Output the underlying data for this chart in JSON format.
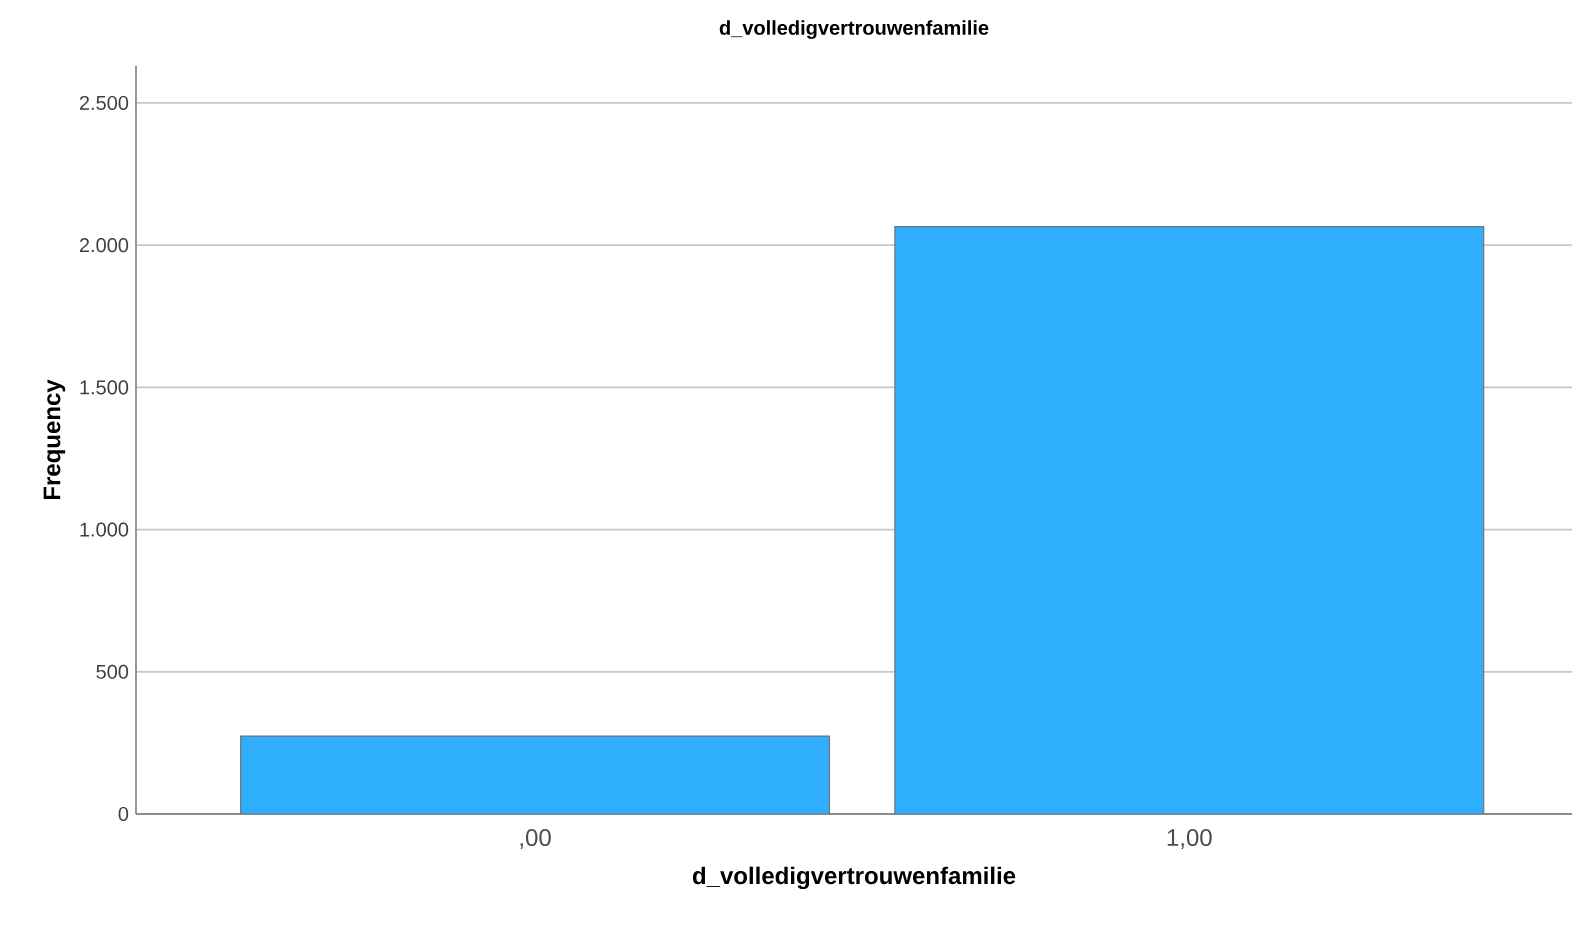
{
  "chart_data": {
    "type": "bar",
    "title": "d_volledigvertrouwenfamilie",
    "xlabel": "d_volledigvertrouwenfamilie",
    "ylabel": "Frequency",
    "categories": [
      ",00",
      "1,00"
    ],
    "values": [
      274,
      2065
    ],
    "color": "#30aefe",
    "ylim": [
      0,
      2630
    ],
    "yticks": [
      0,
      500,
      {
        "value": 1000,
        "label": "1.000"
      },
      {
        "value": 1500,
        "label": "1.500"
      },
      {
        "value": 2000,
        "label": "2.000"
      },
      {
        "value": 2500,
        "label": "2.500"
      }
    ],
    "grid": "y"
  }
}
